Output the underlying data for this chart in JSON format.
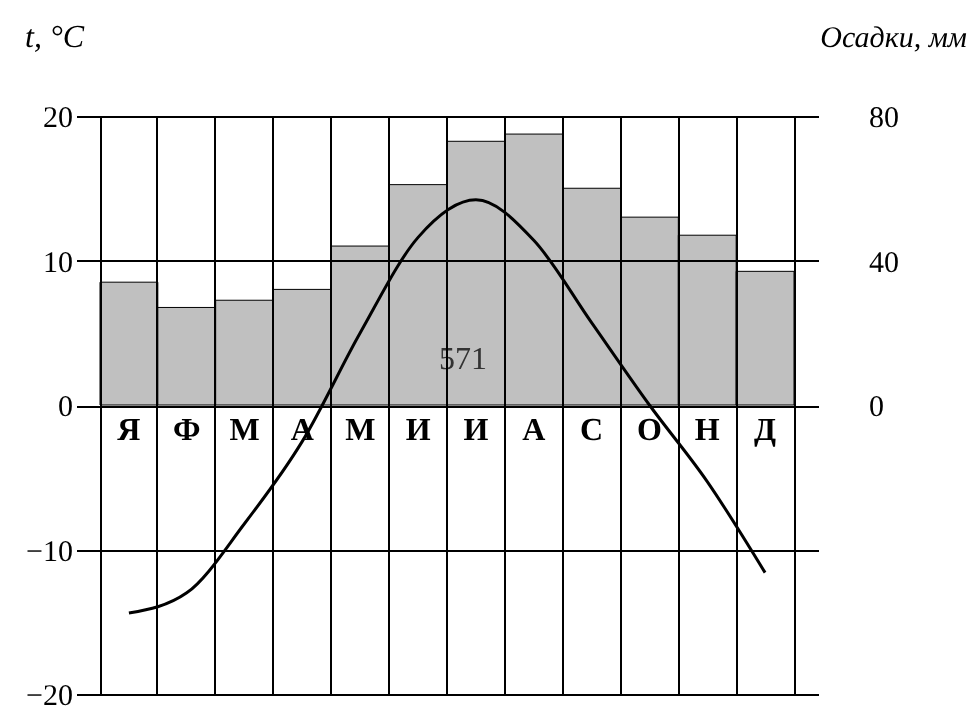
{
  "chart_data": {
    "type": "bar",
    "ylabel": "t, °C",
    "y2label": "Осадки, мм",
    "categories": [
      "Я",
      "Ф",
      "М",
      "А",
      "М",
      "И",
      "И",
      "А",
      "С",
      "О",
      "Н",
      "Д"
    ],
    "series": [
      {
        "axis": "y2",
        "color": "#c0c0c0",
        "values": [
          34,
          27,
          29,
          32,
          44,
          61,
          73,
          75,
          60,
          52,
          47,
          37
        ]
      },
      {
        "type": "line",
        "color": "#000000",
        "values": [
          -14.4,
          -13.0,
          -8.2,
          -2.5,
          5.0,
          11.6,
          14.2,
          11.4,
          5.7,
          0.0,
          -5.3,
          -11.6
        ]
      }
    ],
    "ylim": [
      -20,
      20
    ],
    "yticks": [
      -20,
      -10,
      0,
      10,
      20
    ],
    "y2lim": [
      -80,
      80
    ],
    "y2ticks": [
      {
        "value": -80,
        "label": null
      },
      {
        "value": -40,
        "label": null
      },
      0,
      40,
      80
    ],
    "grid": true,
    "marker": "none",
    "line_style": "solid",
    "annotations": [
      "571"
    ]
  }
}
